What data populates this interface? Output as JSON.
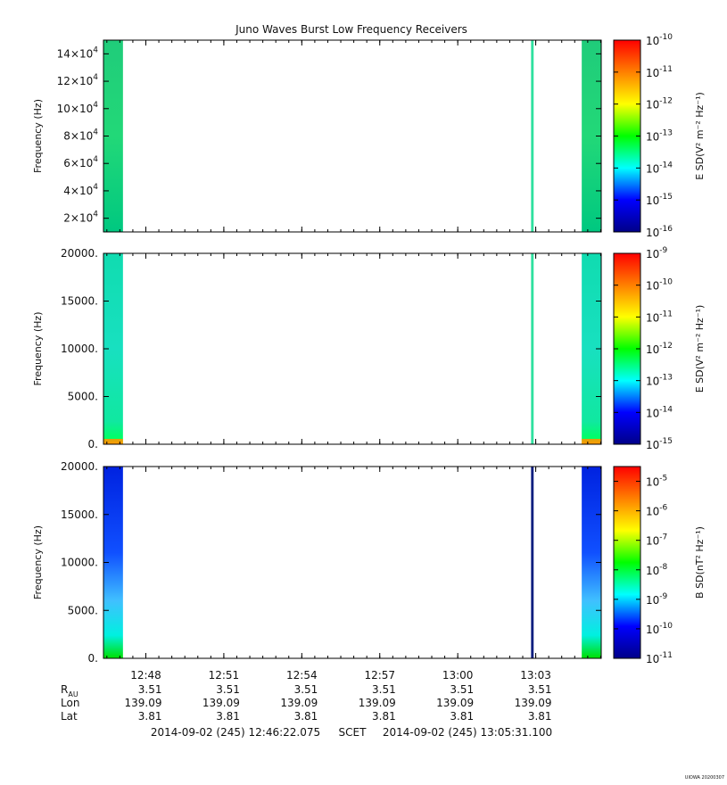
{
  "title": "Juno Waves Burst Low Frequency Receivers",
  "footer": {
    "start": "2014-09-02 (245) 12:46:22.075",
    "scet": "SCET",
    "end": "2014-09-02 (245) 13:05:31.100",
    "stamp": "UIOWA 20200307"
  },
  "ephemeris": {
    "labels": [
      "R",
      "Lon",
      "Lat"
    ],
    "r_subscript": "AU",
    "rows": [
      [
        "3.51",
        "3.51",
        "3.51",
        "3.51",
        "3.51",
        "3.51"
      ],
      [
        "139.09",
        "139.09",
        "139.09",
        "139.09",
        "139.09",
        "139.09"
      ],
      [
        "3.81",
        "3.81",
        "3.81",
        "3.81",
        "3.81",
        "3.81"
      ]
    ]
  },
  "colors": {
    "colorbar_stops": [
      "#000088",
      "#0000ff",
      "#00ffff",
      "#00ff00",
      "#ffff00",
      "#ff8000",
      "#ff0000"
    ]
  },
  "chart_data": [
    {
      "type": "heatmap",
      "panel": "top",
      "ylabel": "Frequency (Hz)",
      "ylim": [
        10000,
        150000
      ],
      "yticks": [
        20000,
        40000,
        60000,
        80000,
        100000,
        120000,
        140000
      ],
      "ytick_labels": [
        [
          "2",
          "4"
        ],
        [
          "4",
          "4"
        ],
        [
          "6",
          "4"
        ],
        [
          "8",
          "4"
        ],
        [
          "10",
          "4"
        ],
        [
          "12",
          "4"
        ],
        [
          "14",
          "4"
        ]
      ],
      "xlabels": [
        "12:48",
        "12:51",
        "12:54",
        "12:57",
        "13:00",
        "13:03"
      ],
      "x_minutes": [
        1.63,
        4.63,
        7.63,
        10.63,
        13.63,
        16.63
      ],
      "xlim_minutes": [
        0,
        19.15
      ],
      "colorbar_label": "E SD(V² m⁻² Hz⁻¹)",
      "colorbar_log_range": [
        -16,
        -10
      ],
      "colorbar_ticks": [
        -16,
        -15,
        -14,
        -13,
        -12,
        -11,
        -10
      ],
      "data_blocks": [
        {
          "x_start": 0.0,
          "x_end": 0.75,
          "pattern": "e_hf"
        },
        {
          "x_start": 16.45,
          "x_end": 16.55,
          "pattern": "line"
        },
        {
          "x_start": 18.4,
          "x_end": 19.15,
          "pattern": "e_hf"
        }
      ]
    },
    {
      "type": "heatmap",
      "panel": "middle",
      "ylabel": "Frequency (Hz)",
      "ylim": [
        0,
        20000
      ],
      "yticks": [
        0,
        5000,
        10000,
        15000,
        20000
      ],
      "ytick_labels": [
        "0.",
        "5000.",
        "10000.",
        "15000.",
        "20000."
      ],
      "xlabels": [
        "12:48",
        "12:51",
        "12:54",
        "12:57",
        "13:00",
        "13:03"
      ],
      "x_minutes": [
        1.63,
        4.63,
        7.63,
        10.63,
        13.63,
        16.63
      ],
      "xlim_minutes": [
        0,
        19.15
      ],
      "colorbar_label": "E SD(V² m⁻² Hz⁻¹)",
      "colorbar_log_range": [
        -15,
        -9
      ],
      "colorbar_ticks": [
        -15,
        -14,
        -13,
        -12,
        -11,
        -10,
        -9
      ],
      "data_blocks": [
        {
          "x_start": 0.0,
          "x_end": 0.75,
          "pattern": "e_lf"
        },
        {
          "x_start": 16.45,
          "x_end": 16.55,
          "pattern": "line"
        },
        {
          "x_start": 18.4,
          "x_end": 19.15,
          "pattern": "e_lf"
        }
      ]
    },
    {
      "type": "heatmap",
      "panel": "bottom",
      "ylabel": "Frequency (Hz)",
      "ylim": [
        0,
        20000
      ],
      "yticks": [
        0,
        5000,
        10000,
        15000,
        20000
      ],
      "ytick_labels": [
        "0.",
        "5000.",
        "10000.",
        "15000.",
        "20000."
      ],
      "xlabels": [
        "12:48",
        "12:51",
        "12:54",
        "12:57",
        "13:00",
        "13:03"
      ],
      "x_minutes": [
        1.63,
        4.63,
        7.63,
        10.63,
        13.63,
        16.63
      ],
      "xlim_minutes": [
        0,
        19.15
      ],
      "colorbar_label": "B SD(nT² Hz⁻¹)",
      "colorbar_log_range": [
        -11,
        -4.5
      ],
      "colorbar_ticks": [
        -11,
        -10,
        -9,
        -8,
        -7,
        -6,
        -5
      ],
      "data_blocks": [
        {
          "x_start": 0.0,
          "x_end": 0.75,
          "pattern": "b"
        },
        {
          "x_start": 16.45,
          "x_end": 16.55,
          "pattern": "line_b"
        },
        {
          "x_start": 18.4,
          "x_end": 19.15,
          "pattern": "b"
        }
      ]
    }
  ]
}
